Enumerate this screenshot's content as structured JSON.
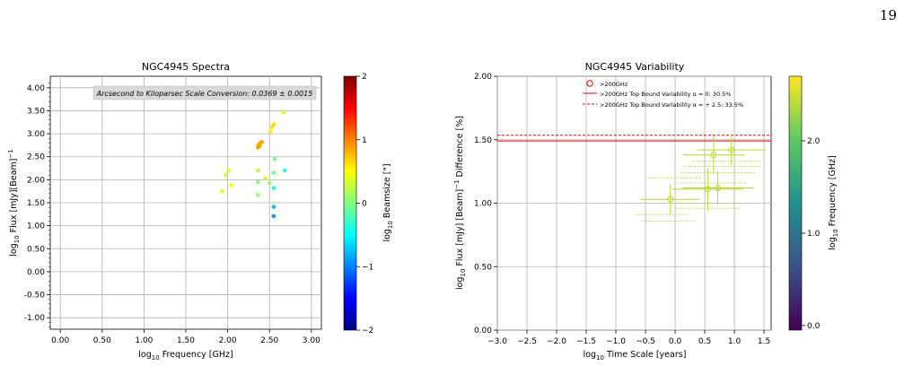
{
  "page_number": "19",
  "chart_data": [
    {
      "type": "scatter",
      "title": "NGC4945 Spectra",
      "xlabel_main": "log",
      "xlabel_sub": "10",
      "xlabel_rest": " Frequency [GHz]",
      "ylabel_main": "log",
      "ylabel_sub": "10",
      "ylabel_rest": " Flux [mJy][Beam]",
      "ylabel_sup": "−1",
      "xlim": [
        -0.12,
        3.12
      ],
      "ylim": [
        -1.25,
        4.25
      ],
      "xticks": [
        0.0,
        0.5,
        1.0,
        1.5,
        2.0,
        2.5,
        3.0
      ],
      "xtick_labels": [
        "0.00",
        "0.50",
        "1.00",
        "1.50",
        "2.00",
        "2.50",
        "3.00"
      ],
      "yticks": [
        4.0,
        3.5,
        3.0,
        2.5,
        2.0,
        1.5,
        1.0,
        0.5,
        0.0,
        -0.5,
        -1.0
      ],
      "ytick_labels": [
        "4.00",
        "3.50",
        "3.00",
        "2.50",
        "2.00",
        "1.50",
        "1.00",
        "0.50",
        "0.00",
        "-0.50",
        "-1.00"
      ],
      "grid": true,
      "annotation": "Arcsecond to Kiloparsec Scale Conversion: 0.0369 ± 0.0015",
      "colorbar": {
        "label_main": "log",
        "label_sub": "10",
        "label_rest": " Beamsize [\"]",
        "range": [
          -2,
          2
        ],
        "ticks": [
          2,
          1,
          0,
          -1,
          -2
        ],
        "tick_labels": [
          "2",
          "1",
          "0",
          "−1",
          "−2"
        ],
        "colormap": "jet"
      },
      "points": [
        {
          "x": 1.93,
          "y": 1.75,
          "c": 0.35
        },
        {
          "x": 1.98,
          "y": 2.1,
          "c": 0.3
        },
        {
          "x": 2.01,
          "y": 2.2,
          "c": 0.4
        },
        {
          "x": 2.04,
          "y": 1.88,
          "c": 0.45
        },
        {
          "x": 2.36,
          "y": 2.7,
          "c": 0.85
        },
        {
          "x": 2.37,
          "y": 2.76,
          "c": 0.85
        },
        {
          "x": 2.38,
          "y": 2.73,
          "c": 0.85
        },
        {
          "x": 2.39,
          "y": 2.8,
          "c": 0.85
        },
        {
          "x": 2.41,
          "y": 2.82,
          "c": 0.85
        },
        {
          "x": 2.36,
          "y": 2.2,
          "c": 0.2
        },
        {
          "x": 2.36,
          "y": 1.95,
          "c": 0.05
        },
        {
          "x": 2.36,
          "y": 1.67,
          "c": 0.1
        },
        {
          "x": 2.45,
          "y": 2.03,
          "c": 0.3
        },
        {
          "x": 2.5,
          "y": 1.93,
          "c": 0.1
        },
        {
          "x": 2.51,
          "y": 3.05,
          "c": 0.55
        },
        {
          "x": 2.53,
          "y": 3.15,
          "c": 0.6
        },
        {
          "x": 2.55,
          "y": 3.2,
          "c": 0.65
        },
        {
          "x": 2.55,
          "y": 2.15,
          "c": -0.05
        },
        {
          "x": 2.56,
          "y": 2.45,
          "c": -0.05
        },
        {
          "x": 2.55,
          "y": 1.82,
          "c": -0.4
        },
        {
          "x": 2.55,
          "y": 1.41,
          "c": -0.75
        },
        {
          "x": 2.55,
          "y": 1.21,
          "c": -0.9
        },
        {
          "x": 2.68,
          "y": 2.2,
          "c": -0.3
        },
        {
          "x": 2.67,
          "y": 3.47,
          "c": 0.4
        }
      ]
    },
    {
      "type": "scatter",
      "title": "NGC4945 Variability",
      "xlabel_main": "log",
      "xlabel_sub": "10",
      "xlabel_rest": " Time Scale [years]",
      "ylabel_main": "log",
      "ylabel_sub": "10",
      "ylabel_rest": " Flux [mJy] [Beam]",
      "ylabel_sup": "−1",
      "ylabel_tail": " Difference [%]",
      "xlim": [
        -3.0,
        1.62
      ],
      "ylim": [
        0.0,
        2.0
      ],
      "xticks": [
        -3.0,
        -2.5,
        -2.0,
        -1.5,
        -1.0,
        -0.5,
        0.0,
        0.5,
        1.0,
        1.5
      ],
      "xtick_labels": [
        "−3.0",
        "−2.5",
        "−2.0",
        "−1.5",
        "−1.0",
        "−0.5",
        "0.0",
        "0.5",
        "1.0",
        "1.5"
      ],
      "yticks": [
        2.0,
        1.5,
        1.0,
        0.5,
        0.0
      ],
      "ytick_labels": [
        "2.00",
        "1.50",
        "1.00",
        "0.50",
        "0.00"
      ],
      "grid": true,
      "hlines": [
        {
          "y": 1.49,
          "style": "solid",
          "color": "#ee0000"
        },
        {
          "y": 1.535,
          "style": "dashed",
          "color": "#ee0000"
        }
      ],
      "legend": {
        "placement": "top-center",
        "entries": [
          {
            "marker": "circle",
            "label": ">200GHz"
          },
          {
            "marker": "solid-line",
            "label": ">200GHz Top Bound Variability α = 0: 30.5%"
          },
          {
            "marker": "dashed-line",
            "label": ">200GHz Top Bound Variability α = + 2.5: 33.5%"
          }
        ]
      },
      "colorbar": {
        "label_main": "log",
        "label_sub": "10",
        "label_rest": " Frequency [GHz]",
        "range": [
          -0.05,
          2.7
        ],
        "ticks": [
          2.0,
          1.0,
          0.0
        ],
        "tick_labels": [
          "2.0",
          "1.0",
          "0.0"
        ],
        "colormap": "viridis"
      },
      "marker_color": "#b5d929",
      "points": [
        {
          "x": -0.08,
          "y": 1.03,
          "xerr": 0.5,
          "yerr": 0.12
        },
        {
          "x": 0.55,
          "y": 1.11,
          "xerr": 0.6,
          "yerr": 0.17
        },
        {
          "x": 0.65,
          "y": 1.38,
          "xerr": 0.52,
          "yerr": 0.15
        },
        {
          "x": 0.72,
          "y": 1.12,
          "xerr": 0.6,
          "yerr": 0.13
        },
        {
          "x": 0.95,
          "y": 1.42,
          "xerr": 0.58,
          "yerr": 0.12
        }
      ],
      "dashed_error_rows": [
        {
          "y": 0.86,
          "x0": -0.55,
          "x1": 0.35
        },
        {
          "y": 0.91,
          "x0": -0.65,
          "x1": 0.25
        },
        {
          "y": 0.96,
          "x0": 0.0,
          "x1": 1.1
        },
        {
          "y": 1.0,
          "x0": 0.05,
          "x1": 1.15
        },
        {
          "y": 1.16,
          "x0": 0.05,
          "x1": 1.2
        },
        {
          "y": 1.2,
          "x0": -0.45,
          "x1": 0.45
        },
        {
          "y": 1.24,
          "x0": 0.1,
          "x1": 1.35
        },
        {
          "y": 1.29,
          "x0": 0.15,
          "x1": 1.45
        },
        {
          "y": 1.33,
          "x0": 0.3,
          "x1": 1.45
        }
      ]
    }
  ]
}
